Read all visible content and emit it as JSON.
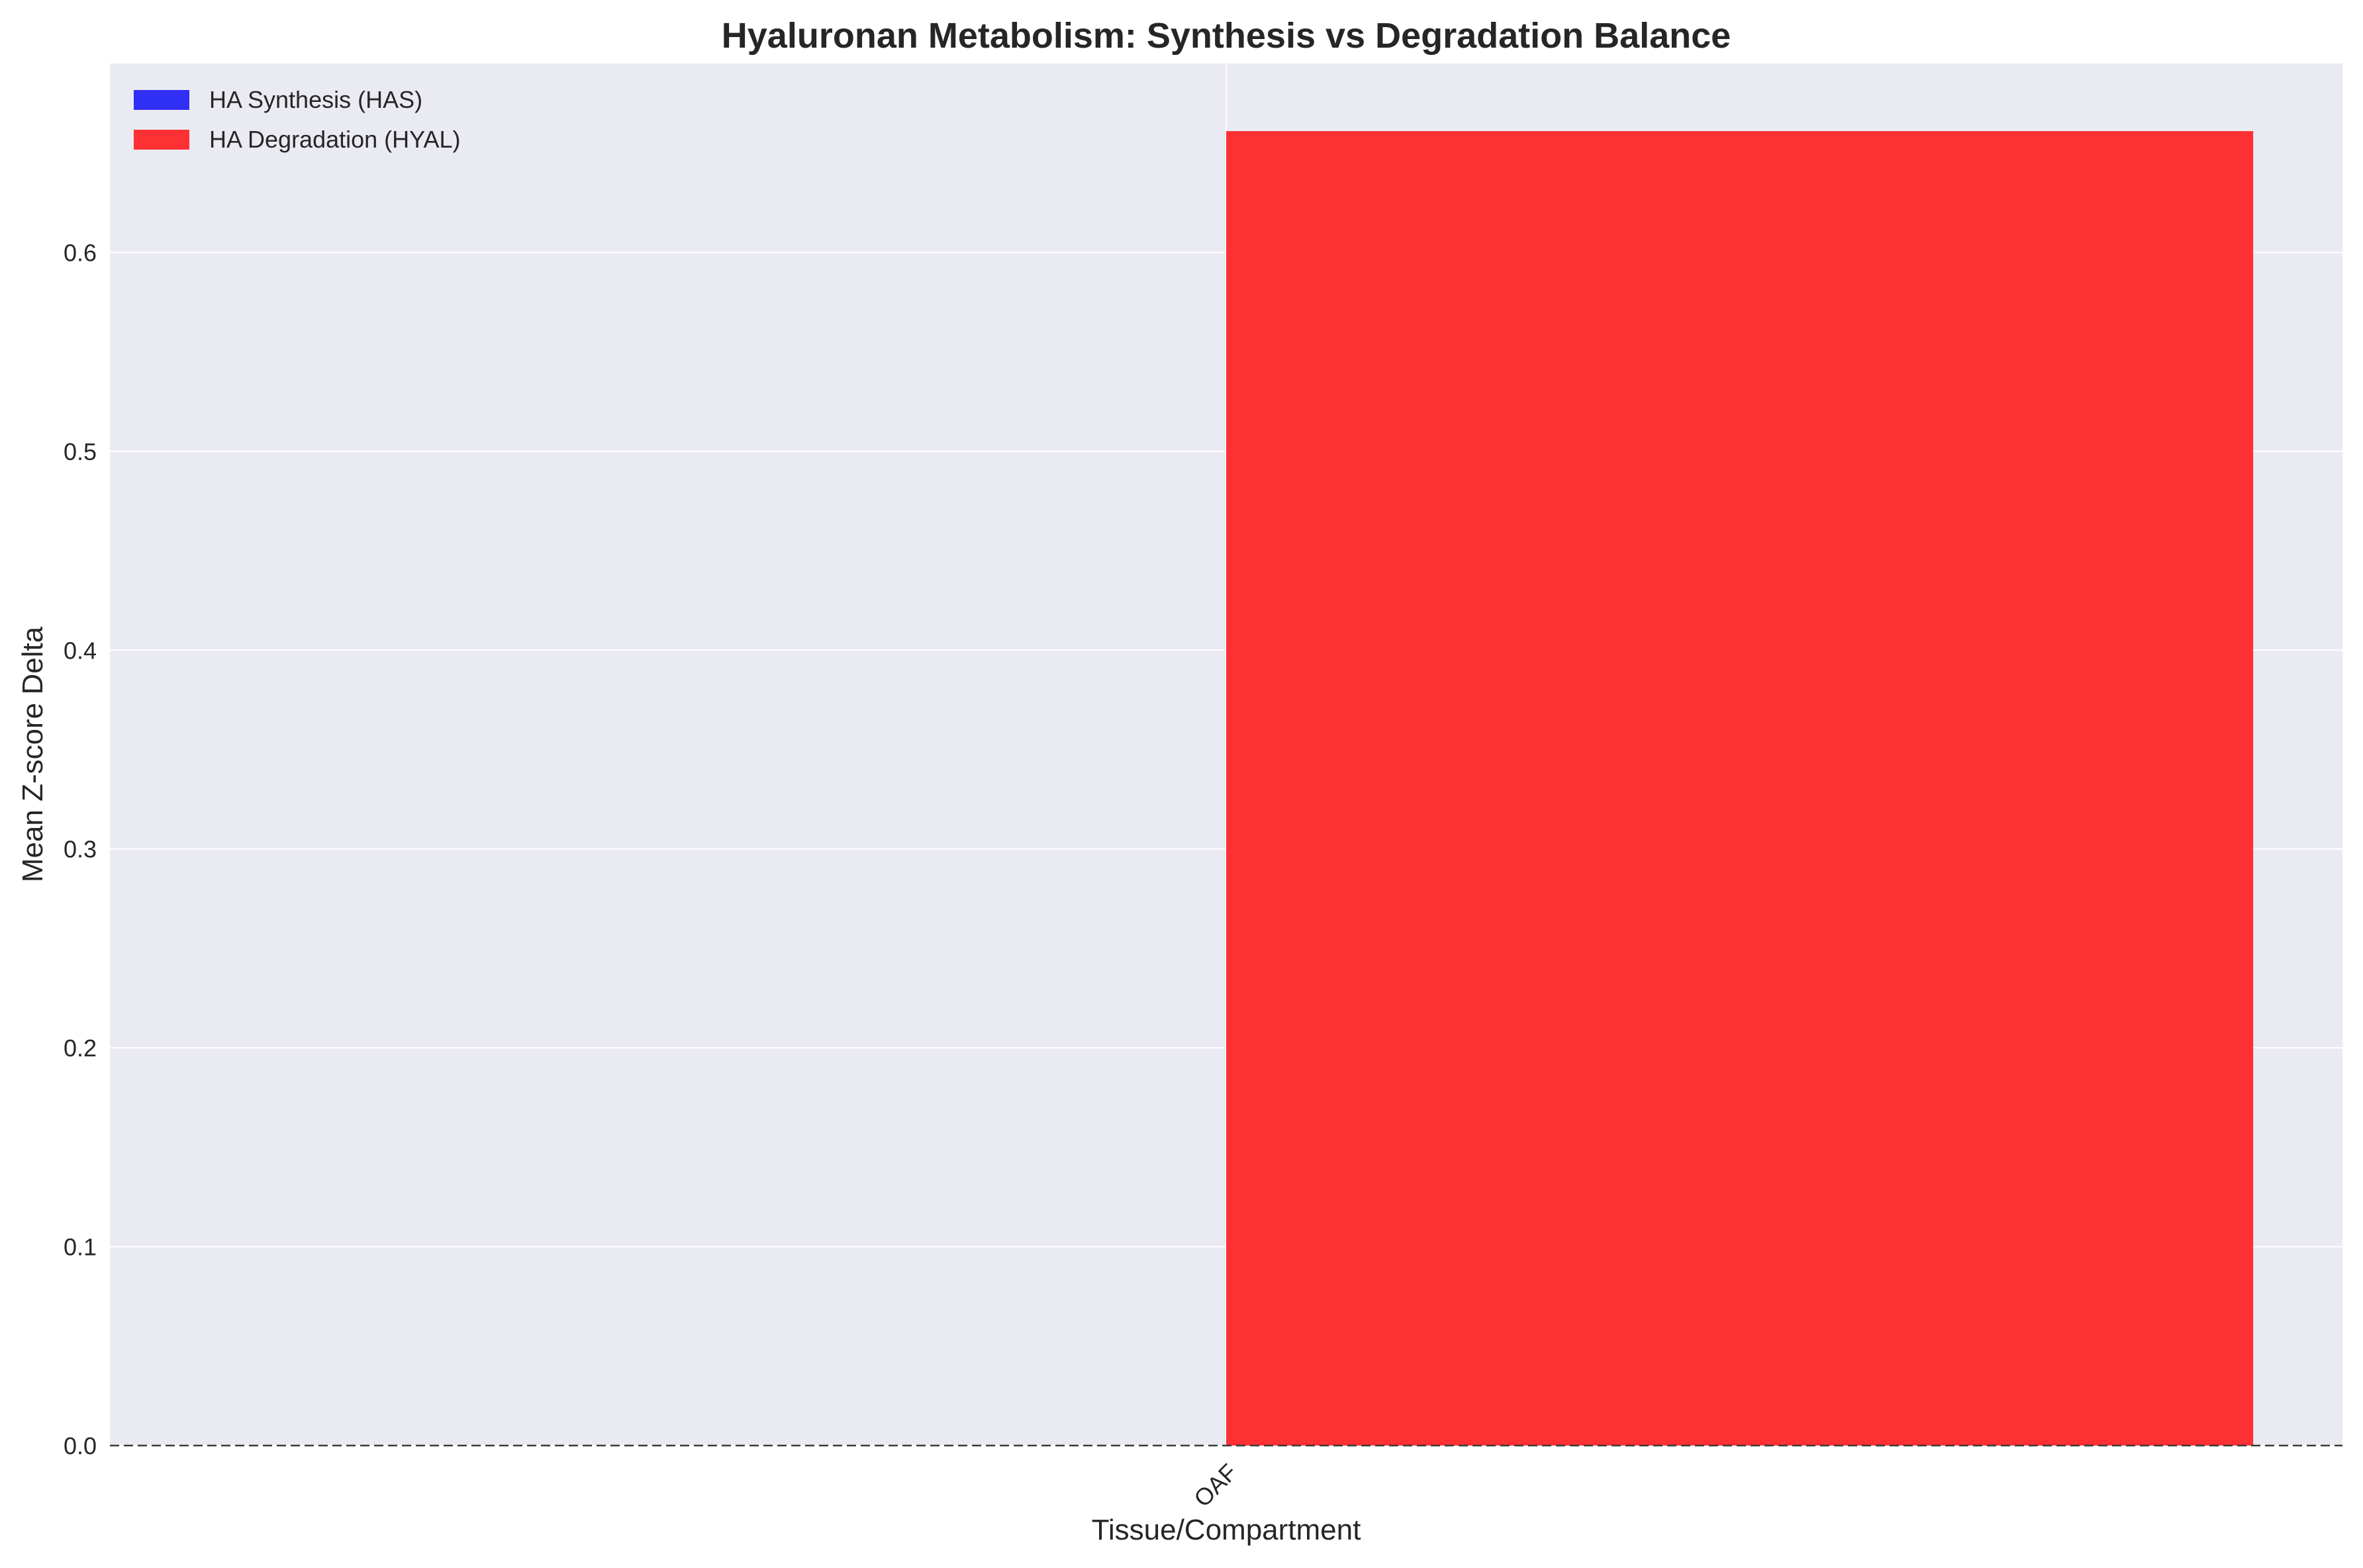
{
  "chart_data": {
    "type": "bar",
    "title": "Hyaluronan Metabolism: Synthesis vs Degradation Balance",
    "xlabel": "Tissue/Compartment",
    "ylabel": "Mean Z-score Delta",
    "categories": [
      "OAF"
    ],
    "series": [
      {
        "name": "HA Synthesis (HAS)",
        "color": "#2f2ff5",
        "values": [
          0
        ]
      },
      {
        "name": "HA Degradation (HYAL)",
        "color": "#fd3034",
        "values": [
          0.661
        ]
      }
    ],
    "ylim": [
      0,
      0.695
    ],
    "yticks": [
      0.0,
      0.1,
      0.2,
      0.3,
      0.4,
      0.5,
      0.6
    ],
    "ytick_labels": [
      "0.0",
      "0.1",
      "0.2",
      "0.3",
      "0.4",
      "0.5",
      "0.6"
    ],
    "grid": true,
    "legend_position": "top-left",
    "zero_line": "dashed",
    "colors": {
      "plot_background": "#eaeaf2",
      "grid": "#ffffff",
      "text": "#262626"
    }
  }
}
